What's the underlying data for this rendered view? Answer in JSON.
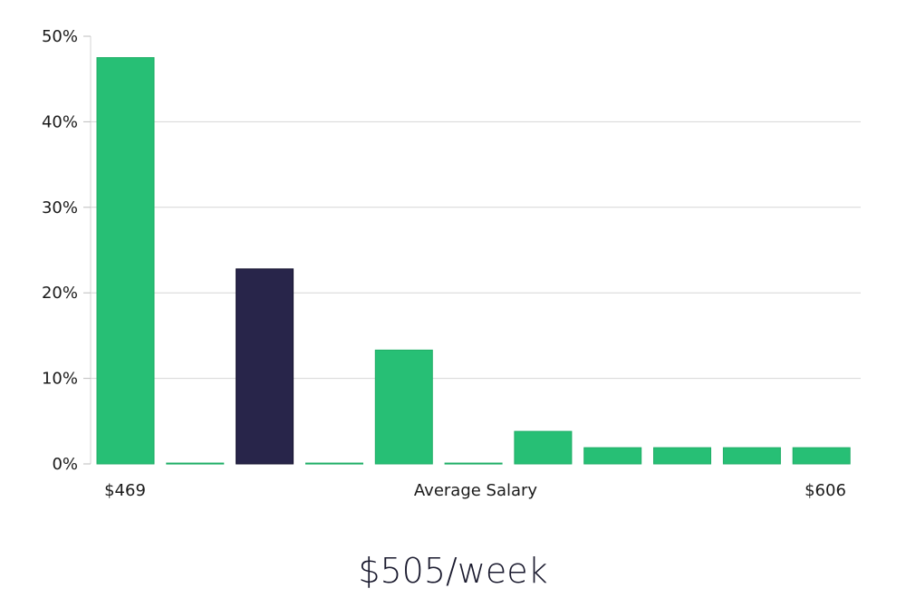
{
  "chart_data": {
    "type": "bar",
    "title": "",
    "xlabel": "Average Salary",
    "ylabel": "",
    "ylim": [
      0,
      50
    ],
    "y_ticks": [
      "0%",
      "10%",
      "20%",
      "30%",
      "40%",
      "50%"
    ],
    "x_min_label": "$469",
    "x_max_label": "$606",
    "values": [
      47.5,
      0.1,
      22.8,
      0.1,
      13.3,
      0.1,
      3.8,
      1.9,
      1.9,
      1.9,
      1.9
    ],
    "highlight_index": 2,
    "colors": {
      "bar": "#27bf75",
      "highlight": "#28254a",
      "grid": "#d6d6d6"
    }
  },
  "headline": "$505/week"
}
